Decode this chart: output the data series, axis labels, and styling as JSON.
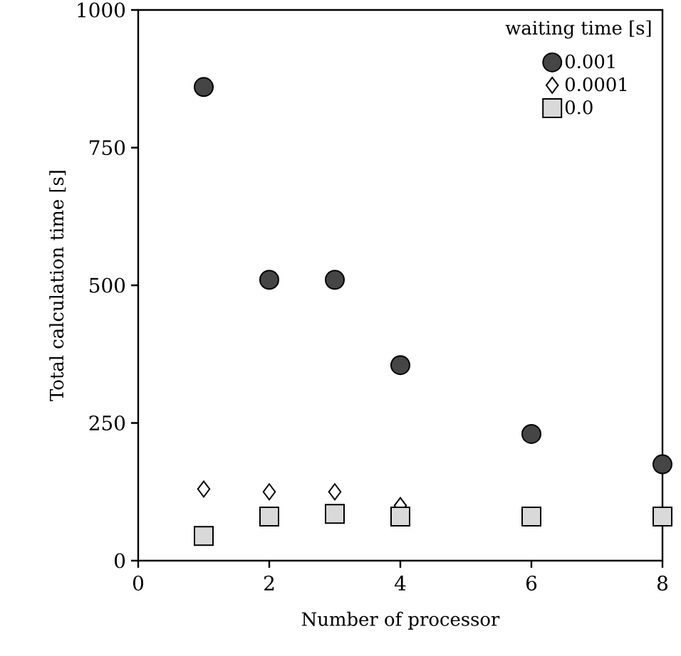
{
  "chart_data": {
    "type": "scatter",
    "xlabel": "Number of processor",
    "ylabel": "Total calculation time [s]",
    "legend_title": "waiting time [s]",
    "legend": "top right",
    "x": [
      1,
      2,
      3,
      4,
      6,
      8
    ],
    "series": [
      {
        "name": "0.001",
        "color": "#454545",
        "marker": "circle",
        "values": [
          860,
          510,
          510,
          355,
          230,
          175
        ]
      },
      {
        "name": "0.0001",
        "color": "#ffffff",
        "marker": "diamond",
        "values": [
          130,
          125,
          125,
          100,
          null,
          null
        ]
      },
      {
        "name": "0.0",
        "color": "#d9d9d9",
        "marker": "square",
        "values": [
          45,
          80,
          85,
          80,
          80,
          80
        ]
      }
    ],
    "xlim": [
      0,
      8
    ],
    "xticks": [
      0,
      2,
      4,
      6,
      8
    ],
    "ylim": [
      0,
      1000
    ],
    "yticks": [
      0,
      250,
      500,
      750,
      1000
    ]
  }
}
